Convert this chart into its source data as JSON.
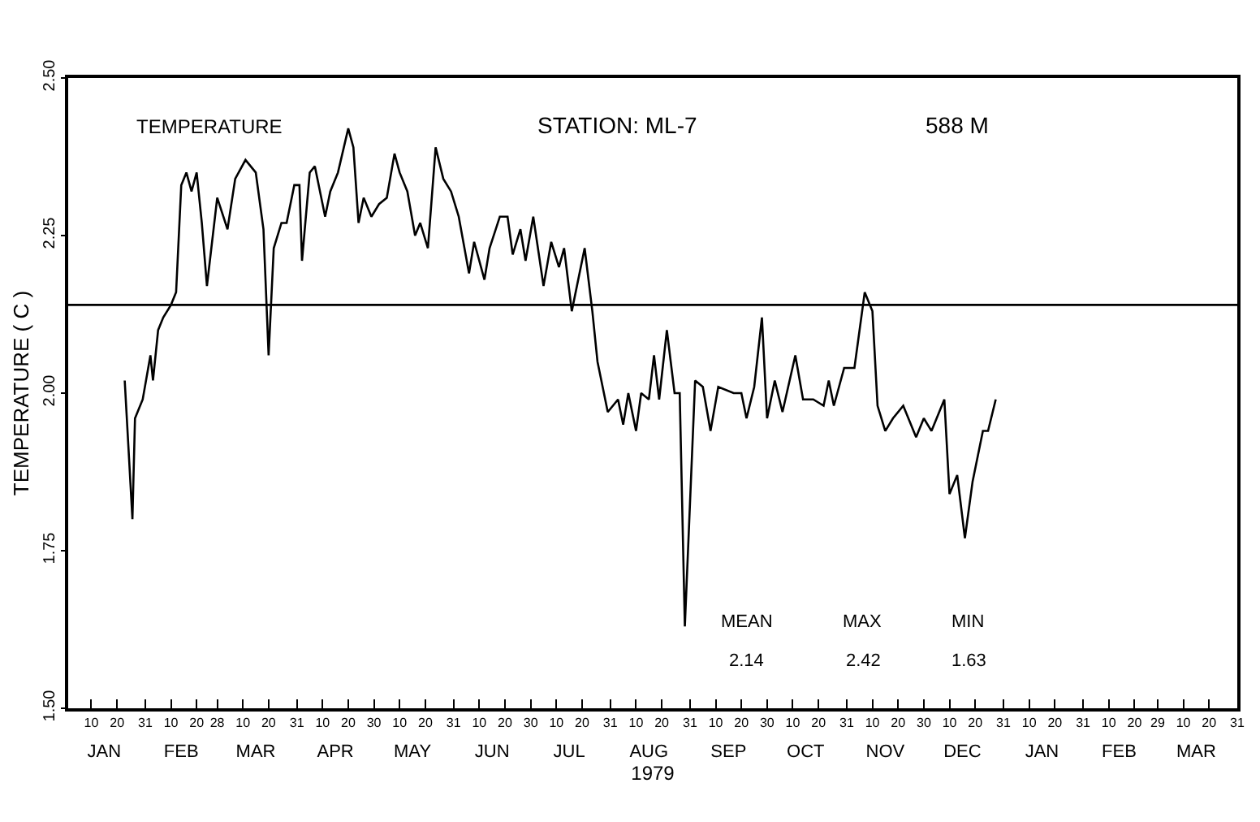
{
  "chart_data": {
    "type": "line",
    "xlabel": "1979",
    "ylabel": "TEMPERATURE ( C )",
    "x": [
      "1979-01-23",
      "1979-01-26",
      "1979-01-27",
      "1979-01-30",
      "1979-02-02",
      "1979-02-03",
      "1979-02-05",
      "1979-02-07",
      "1979-02-10",
      "1979-02-12",
      "1979-02-14",
      "1979-02-16",
      "1979-02-18",
      "1979-02-20",
      "1979-02-22",
      "1979-02-24",
      "1979-02-28",
      "1979-03-04",
      "1979-03-07",
      "1979-03-11",
      "1979-03-15",
      "1979-03-18",
      "1979-03-20",
      "1979-03-22",
      "1979-03-25",
      "1979-03-27",
      "1979-03-30",
      "1979-04-01",
      "1979-04-02",
      "1979-04-05",
      "1979-04-07",
      "1979-04-11",
      "1979-04-13",
      "1979-04-16",
      "1979-04-20",
      "1979-04-22",
      "1979-04-24",
      "1979-04-26",
      "1979-04-29",
      "1979-05-02",
      "1979-05-05",
      "1979-05-08",
      "1979-05-10",
      "1979-05-13",
      "1979-05-16",
      "1979-05-18",
      "1979-05-21",
      "1979-05-24",
      "1979-05-27",
      "1979-05-30",
      "1979-06-02",
      "1979-06-06",
      "1979-06-08",
      "1979-06-12",
      "1979-06-14",
      "1979-06-18",
      "1979-06-21",
      "1979-06-23",
      "1979-06-26",
      "1979-06-28",
      "1979-07-01",
      "1979-07-05",
      "1979-07-08",
      "1979-07-11",
      "1979-07-13",
      "1979-07-16",
      "1979-07-21",
      "1979-07-24",
      "1979-07-26",
      "1979-07-30",
      "1979-08-03",
      "1979-08-05",
      "1979-08-07",
      "1979-08-10",
      "1979-08-12",
      "1979-08-15",
      "1979-08-17",
      "1979-08-19",
      "1979-08-22",
      "1979-08-25",
      "1979-08-27",
      "1979-08-29",
      "1979-09-02",
      "1979-09-05",
      "1979-09-08",
      "1979-09-11",
      "1979-09-17",
      "1979-09-20",
      "1979-09-22",
      "1979-09-25",
      "1979-09-28",
      "1979-09-30",
      "1979-10-03",
      "1979-10-06",
      "1979-10-11",
      "1979-10-14",
      "1979-10-18",
      "1979-10-22",
      "1979-10-24",
      "1979-10-26",
      "1979-10-30",
      "1979-11-03",
      "1979-11-07",
      "1979-11-10",
      "1979-11-12",
      "1979-11-15",
      "1979-11-18",
      "1979-11-22",
      "1979-11-27",
      "1979-11-30",
      "1979-12-03",
      "1979-12-08",
      "1979-12-10",
      "1979-12-13",
      "1979-12-16",
      "1979-12-19",
      "1979-12-23",
      "1979-12-25",
      "1979-12-28"
    ],
    "series": [
      {
        "name": "TEMPERATURE",
        "color": "#000000",
        "values": [
          2.02,
          1.8,
          1.96,
          1.99,
          2.06,
          2.02,
          2.1,
          2.12,
          2.14,
          2.16,
          2.33,
          2.35,
          2.32,
          2.35,
          2.27,
          2.17,
          2.31,
          2.26,
          2.34,
          2.37,
          2.35,
          2.26,
          2.06,
          2.23,
          2.27,
          2.27,
          2.33,
          2.33,
          2.21,
          2.35,
          2.36,
          2.28,
          2.32,
          2.35,
          2.42,
          2.39,
          2.27,
          2.31,
          2.28,
          2.3,
          2.31,
          2.38,
          2.35,
          2.32,
          2.25,
          2.27,
          2.23,
          2.39,
          2.34,
          2.32,
          2.28,
          2.19,
          2.24,
          2.18,
          2.23,
          2.28,
          2.28,
          2.22,
          2.26,
          2.21,
          2.28,
          2.17,
          2.24,
          2.2,
          2.23,
          2.13,
          2.23,
          2.13,
          2.05,
          1.97,
          1.99,
          1.95,
          2.0,
          1.94,
          2.0,
          1.99,
          2.06,
          1.99,
          2.1,
          2.0,
          2.0,
          1.63,
          2.02,
          2.01,
          1.94,
          2.01,
          2.0,
          2.0,
          1.96,
          2.01,
          2.12,
          1.96,
          2.02,
          1.97,
          2.06,
          1.99,
          1.99,
          1.98,
          2.02,
          1.98,
          2.04,
          2.04,
          2.16,
          2.13,
          1.98,
          1.94,
          1.96,
          1.98,
          1.93,
          1.96,
          1.94,
          1.99,
          1.84,
          1.87,
          1.77,
          1.86,
          1.94,
          1.94,
          1.99
        ]
      }
    ],
    "xlim": [
      "1979-01-01",
      "1980-03-31"
    ],
    "xticks": [
      {
        "value": "1979-01-10",
        "label": "10"
      },
      {
        "value": "1979-01-20",
        "label": "20"
      },
      {
        "value": "1979-01-31",
        "label": "31"
      },
      {
        "value": "1979-02-10",
        "label": "10"
      },
      {
        "value": "1979-02-20",
        "label": "20"
      },
      {
        "value": "1979-02-28",
        "label": "28"
      },
      {
        "value": "1979-03-10",
        "label": "10"
      },
      {
        "value": "1979-03-20",
        "label": "20"
      },
      {
        "value": "1979-03-31",
        "label": "31"
      },
      {
        "value": "1979-04-10",
        "label": "10"
      },
      {
        "value": "1979-04-20",
        "label": "20"
      },
      {
        "value": "1979-04-30",
        "label": "30"
      },
      {
        "value": "1979-05-10",
        "label": "10"
      },
      {
        "value": "1979-05-20",
        "label": "20"
      },
      {
        "value": "1979-05-31",
        "label": "31"
      },
      {
        "value": "1979-06-10",
        "label": "10"
      },
      {
        "value": "1979-06-20",
        "label": "20"
      },
      {
        "value": "1979-06-30",
        "label": "30"
      },
      {
        "value": "1979-07-10",
        "label": "10"
      },
      {
        "value": "1979-07-20",
        "label": "20"
      },
      {
        "value": "1979-07-31",
        "label": "31"
      },
      {
        "value": "1979-08-10",
        "label": "10"
      },
      {
        "value": "1979-08-20",
        "label": "20"
      },
      {
        "value": "1979-08-31",
        "label": "31"
      },
      {
        "value": "1979-09-10",
        "label": "10"
      },
      {
        "value": "1979-09-20",
        "label": "20"
      },
      {
        "value": "1979-09-30",
        "label": "30"
      },
      {
        "value": "1979-10-10",
        "label": "10"
      },
      {
        "value": "1979-10-20",
        "label": "20"
      },
      {
        "value": "1979-10-31",
        "label": "31"
      },
      {
        "value": "1979-11-10",
        "label": "10"
      },
      {
        "value": "1979-11-20",
        "label": "20"
      },
      {
        "value": "1979-11-30",
        "label": "30"
      },
      {
        "value": "1979-12-10",
        "label": "10"
      },
      {
        "value": "1979-12-20",
        "label": "20"
      },
      {
        "value": "1979-12-31",
        "label": "31"
      },
      {
        "value": "1980-01-10",
        "label": "10"
      },
      {
        "value": "1980-01-20",
        "label": "20"
      },
      {
        "value": "1980-01-31",
        "label": "31"
      },
      {
        "value": "1980-02-10",
        "label": "10"
      },
      {
        "value": "1980-02-20",
        "label": "20"
      },
      {
        "value": "1980-02-29",
        "label": "29"
      },
      {
        "value": "1980-03-10",
        "label": "10"
      },
      {
        "value": "1980-03-20",
        "label": "20"
      },
      {
        "value": "1980-03-31",
        "label": "31"
      }
    ],
    "x2lim": [
      "1979-01-01",
      "1980-03-31"
    ],
    "x2ticks": [
      {
        "value": "1979-01-15",
        "label": "JAN"
      },
      {
        "value": "1979-02-14",
        "label": "FEB"
      },
      {
        "value": "1979-03-15",
        "label": "MAR"
      },
      {
        "value": "1979-04-15",
        "label": "APR"
      },
      {
        "value": "1979-05-15",
        "label": "MAY"
      },
      {
        "value": "1979-06-15",
        "label": "JUN"
      },
      {
        "value": "1979-07-15",
        "label": "JUL"
      },
      {
        "value": "1979-08-15",
        "label": "AUG"
      },
      {
        "value": "1979-09-15",
        "label": "SEP"
      },
      {
        "value": "1979-10-15",
        "label": "OCT"
      },
      {
        "value": "1979-11-15",
        "label": "NOV"
      },
      {
        "value": "1979-12-15",
        "label": "DEC"
      },
      {
        "value": "1980-01-15",
        "label": "JAN"
      },
      {
        "value": "1980-02-14",
        "label": "FEB"
      },
      {
        "value": "1980-03-15",
        "label": "MAR"
      }
    ],
    "ylim": [
      1.5,
      2.5
    ],
    "yticks": [
      {
        "value": 1.5,
        "label": "1.50"
      },
      {
        "value": 1.75,
        "label": "1.75"
      },
      {
        "value": 2.0,
        "label": "2.00"
      },
      {
        "value": 2.25,
        "label": "2.25"
      },
      {
        "value": 2.5,
        "label": "2.50"
      }
    ],
    "ref_lines": [
      {
        "axis": "y",
        "value": 2.14,
        "color": "#000000",
        "line_style": "solid"
      }
    ],
    "annotations": [
      "STATION: ML-7",
      "588 M",
      "MEAN",
      "MAX",
      "MIN",
      "2.14",
      "2.42",
      "1.63"
    ],
    "legend": false,
    "marker": "none",
    "line_style": "solid"
  }
}
